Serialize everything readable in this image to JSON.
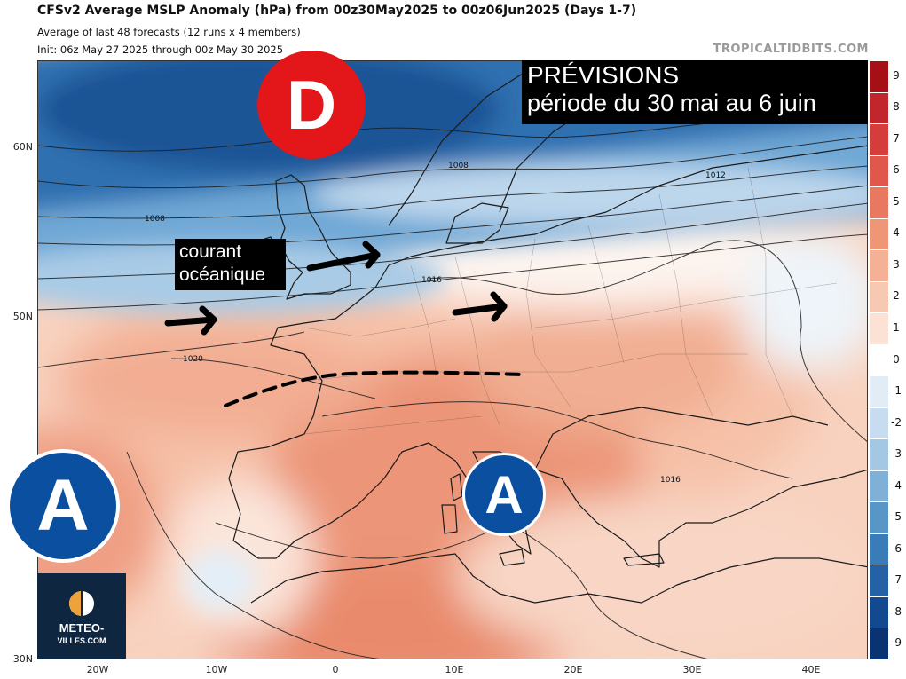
{
  "header": {
    "title": "CFSv2 Average MSLP Anomaly (hPa) from 00z30May2025 to 00z06Jun2025 (Days 1-7)",
    "subtitle": "Average of last 48 forecasts (12 runs x 4 members)",
    "init": "Init: 06z May 27 2025 through 00z May 30 2025",
    "source": "TROPICALTIDBITS.COM"
  },
  "overlay": {
    "forecast_title": "PRÉVISIONS",
    "forecast_period": "période du 30 mai au 6 juin",
    "current_label_1": "courant",
    "current_label_2": "océanique",
    "low_letter": "D",
    "high_letter": "A"
  },
  "logo": {
    "name": "METEO-",
    "name2": "VILLES.COM"
  },
  "axes": {
    "lat_labels": [
      "60N",
      "50N",
      "30N"
    ],
    "lon_labels": [
      "20W",
      "10W",
      "0",
      "10E",
      "20E",
      "30E",
      "40E"
    ]
  },
  "colorbar": {
    "labels": [
      "9",
      "8",
      "7",
      "6",
      "5",
      "4",
      "3",
      "2",
      "1",
      "0",
      "-1",
      "-2",
      "-3",
      "-4",
      "-5",
      "-6",
      "-7",
      "-8",
      "-9"
    ],
    "colors": [
      "#a50f15",
      "#c0262b",
      "#d43d3a",
      "#e0584c",
      "#e87960",
      "#ef9677",
      "#f4b195",
      "#f8c9b2",
      "#fbe2d5",
      "#ffffff",
      "#e1ecf4",
      "#c7dcee",
      "#a4c8e3",
      "#7fb0d8",
      "#5896c8",
      "#397cb8",
      "#2462a5",
      "#134a8f",
      "#0a3372"
    ]
  },
  "isobars": [
    "1008",
    "1008",
    "1012",
    "1016",
    "1020",
    "1016"
  ],
  "colors": {
    "low_badge": "#e3161a",
    "high_badge": "#0b4fa0",
    "banner_bg": "#000000",
    "logo_bg": "#0e2640"
  }
}
